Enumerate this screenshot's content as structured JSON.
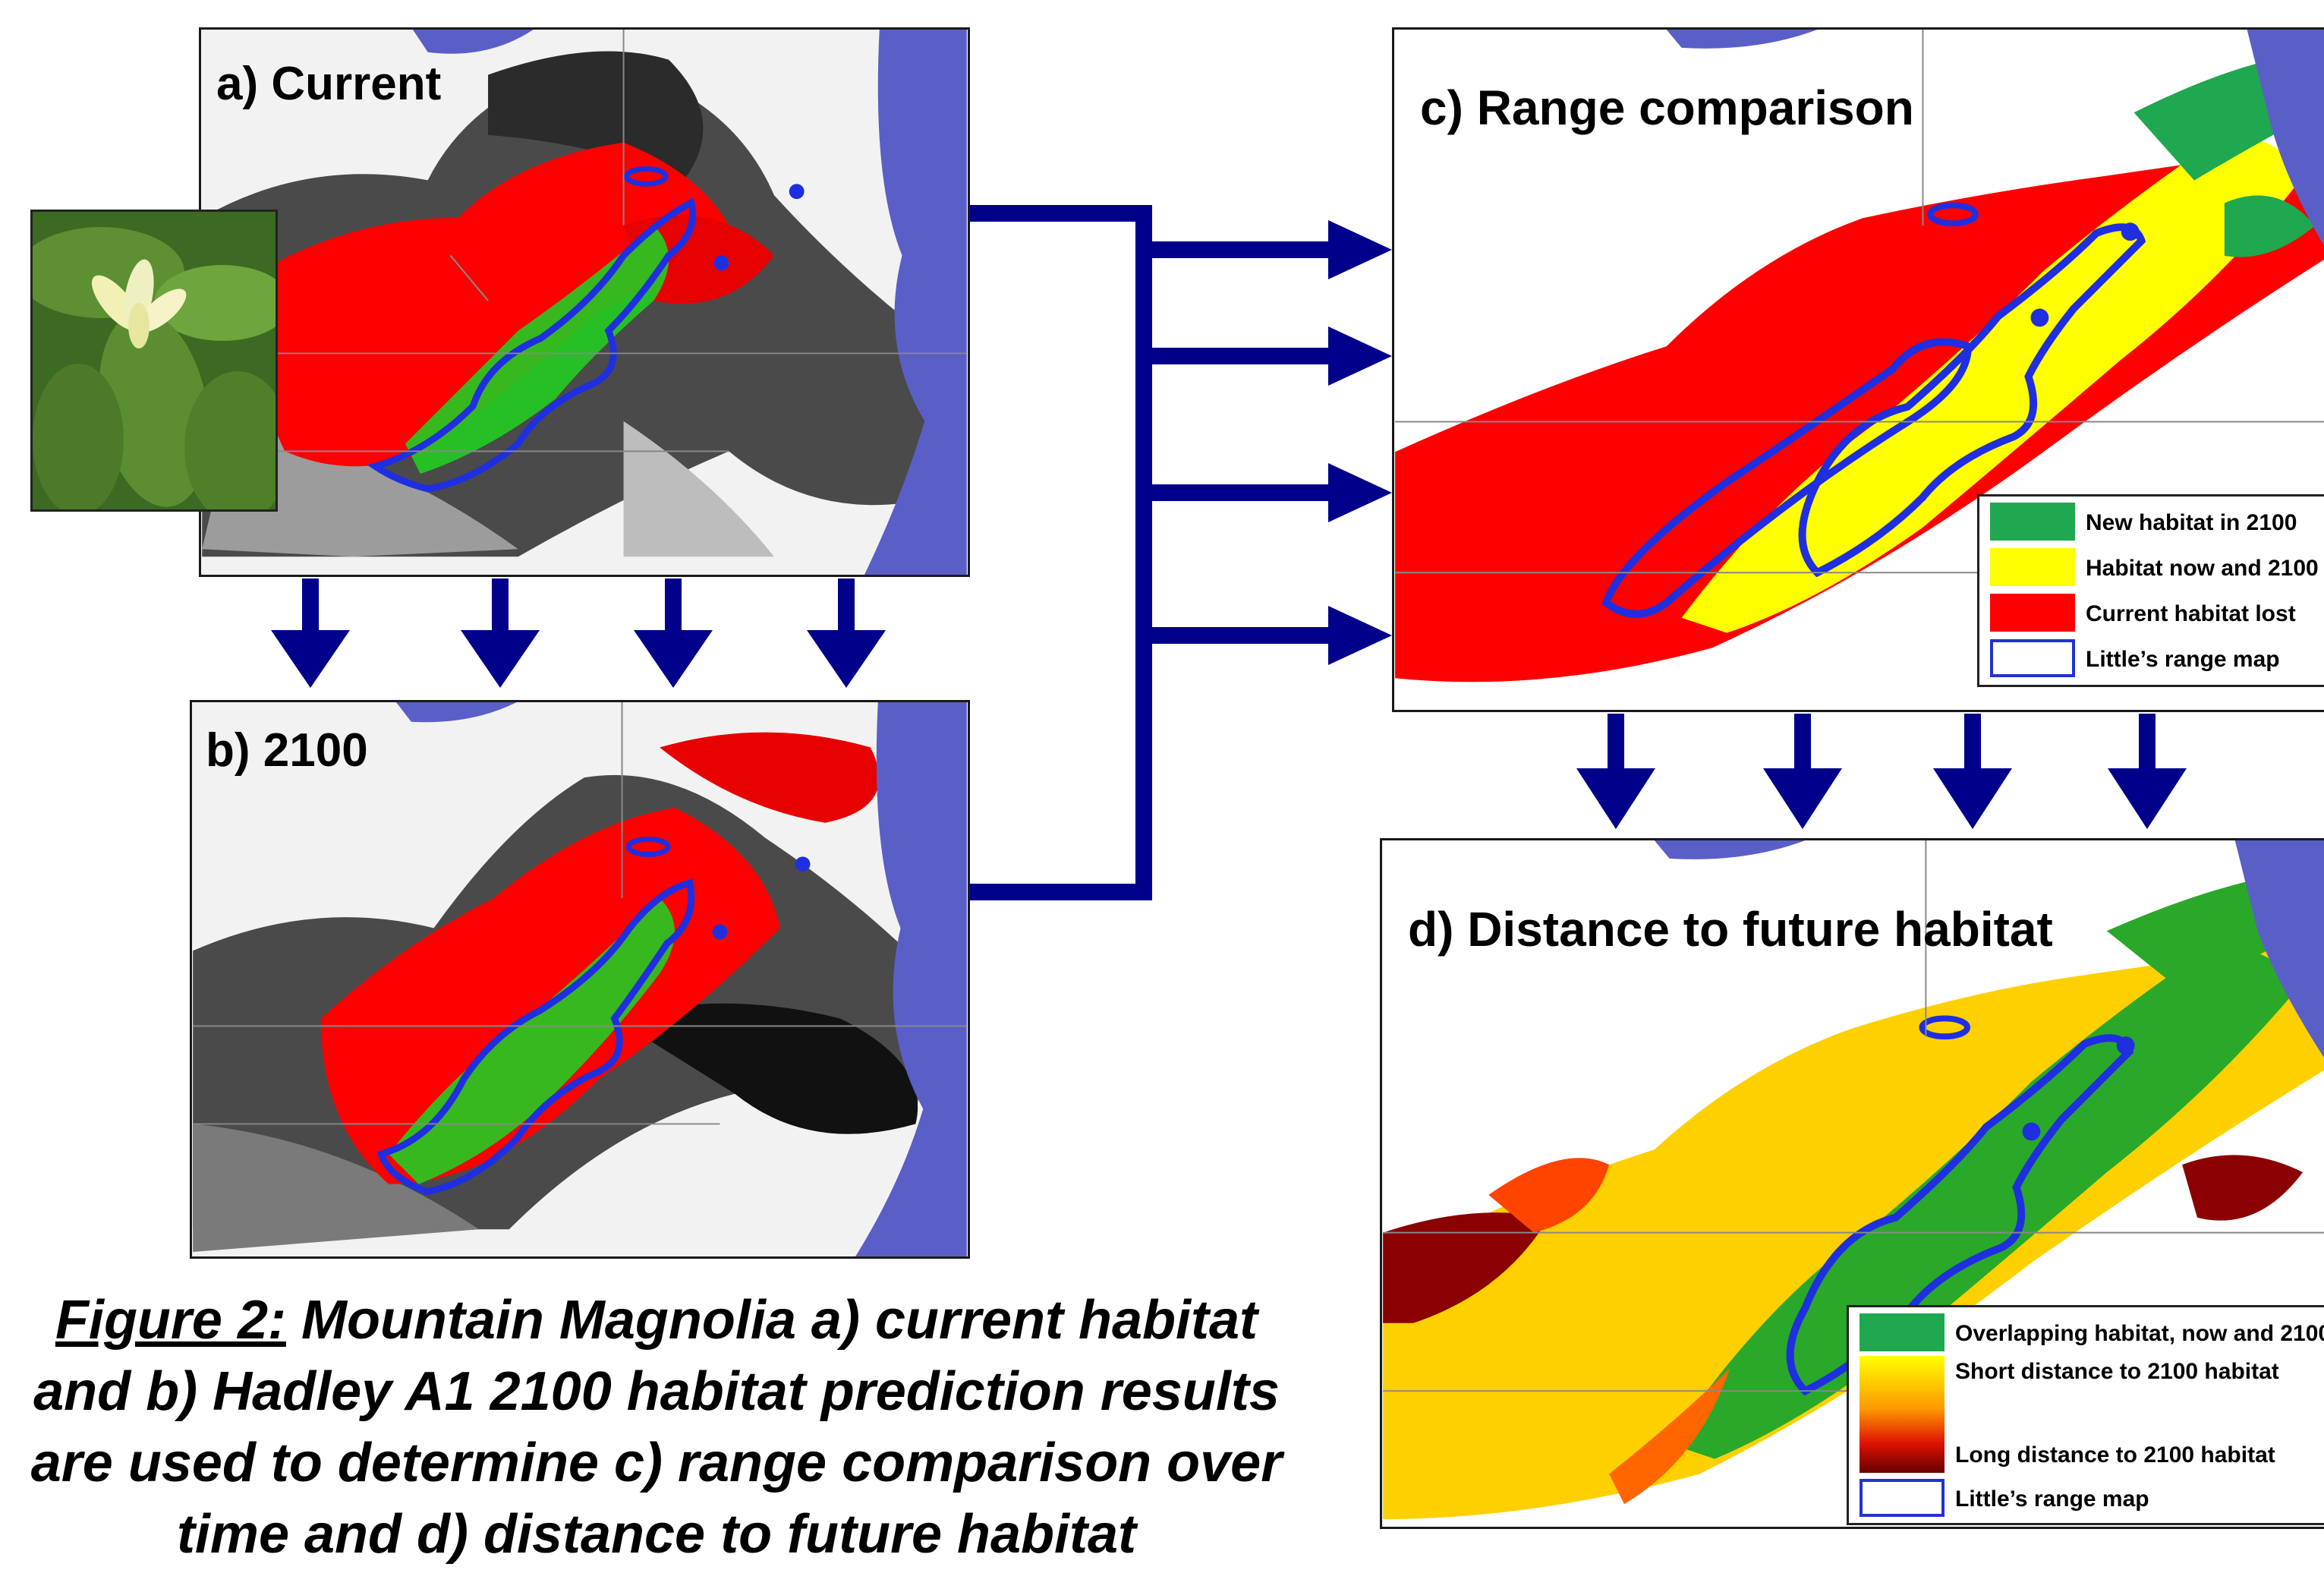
{
  "panels": {
    "a": {
      "title": "a) Current"
    },
    "b": {
      "title": "b) 2100"
    },
    "c": {
      "title": "c) Range comparison",
      "legend": [
        {
          "label": "New habitat in 2100",
          "color": "#1fa84f"
        },
        {
          "label": "Habitat now and 2100",
          "color": "#ffff00"
        },
        {
          "label": "Current habitat lost",
          "color": "#ff0000"
        },
        {
          "label": "Little’s range map",
          "color": "#2233cc"
        }
      ]
    },
    "d": {
      "title": "d) Distance to future habitat",
      "legend": {
        "overlap": "Overlapping habitat, now and 2100",
        "short": "Short distance to 2100 habitat",
        "long": "Long distance to 2100 habitat",
        "range": "Little’s range map"
      }
    }
  },
  "caption": {
    "figure_label": "Figure 2:",
    "text": " Mountain Magnolia a) current habitat and b) Hadley A1 2100 habitat prediction results are used to determine c) range comparison over time and d) distance to future habitat"
  },
  "colors": {
    "arrow": "#00008b",
    "range_outline": "#1f2fe0",
    "water": "#5a5fc8",
    "habitat_red": "#ff0000",
    "habitat_green": "#22cc22",
    "habitat_yellow": "#ffff00"
  },
  "photo": {
    "subject": "magnolia-flower-photo"
  }
}
